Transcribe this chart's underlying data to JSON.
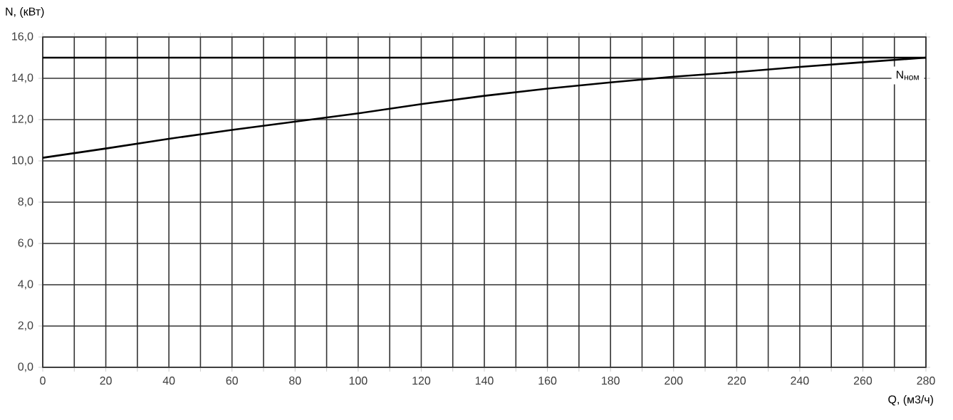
{
  "chart_data": {
    "type": "line",
    "xlabel": "Q, (м3/ч)",
    "ylabel": "N, (кВт)",
    "x": [
      0,
      20,
      40,
      60,
      80,
      100,
      120,
      140,
      160,
      180,
      200,
      220,
      240,
      260,
      280
    ],
    "series": [
      {
        "color": "#000000",
        "values": [
          10.15,
          10.6,
          11.07,
          11.5,
          11.9,
          12.3,
          12.75,
          13.15,
          13.5,
          13.8,
          14.08,
          14.3,
          14.55,
          14.78,
          15.0
        ]
      }
    ],
    "xlim": [
      0,
      280
    ],
    "ylim": [
      0,
      16
    ],
    "xticks": [
      0,
      {
        "value": 10,
        "label": null
      },
      20,
      {
        "value": 30,
        "label": null
      },
      40,
      {
        "value": 50,
        "label": null
      },
      60,
      {
        "value": 70,
        "label": null
      },
      80,
      {
        "value": 90,
        "label": null
      },
      100,
      {
        "value": 110,
        "label": null
      },
      120,
      {
        "value": 130,
        "label": null
      },
      140,
      {
        "value": 150,
        "label": null
      },
      160,
      {
        "value": 170,
        "label": null
      },
      180,
      {
        "value": 190,
        "label": null
      },
      200,
      {
        "value": 210,
        "label": null
      },
      220,
      {
        "value": 230,
        "label": null
      },
      240,
      {
        "value": 250,
        "label": null
      },
      260,
      {
        "value": 270,
        "label": null
      },
      280
    ],
    "yticks": [
      {
        "value": 0,
        "label": "0,0"
      },
      {
        "value": 2,
        "label": "2,0"
      },
      {
        "value": 4,
        "label": "4,0"
      },
      {
        "value": 6,
        "label": "6,0"
      },
      {
        "value": 8,
        "label": "8,0"
      },
      {
        "value": 10,
        "label": "10,0"
      },
      {
        "value": 12,
        "label": "12,0"
      },
      {
        "value": 14,
        "label": "14,0"
      },
      {
        "value": 16,
        "label": "16,0"
      }
    ],
    "ref_lines": [
      {
        "axis": "y",
        "value": 15,
        "label": "N$_{ном}$",
        "color": "#000000"
      }
    ],
    "grid": true,
    "marker": "none",
    "line_style": "solid"
  }
}
